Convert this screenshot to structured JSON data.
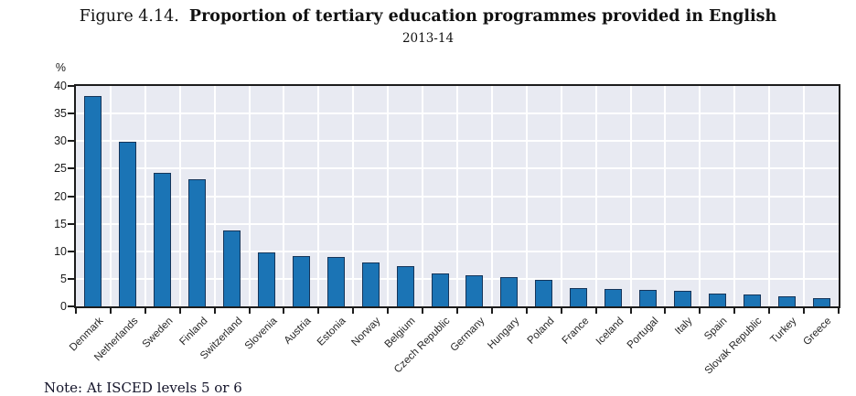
{
  "title": {
    "prefix": "Figure 4.14.",
    "text": "Proportion of tertiary education programmes provided in English"
  },
  "subtitle": "2013-14",
  "note": "Note:  At ISCED levels 5 or 6",
  "chart_data": {
    "type": "bar",
    "title": "Figure 4.14. Proportion of tertiary education programmes provided in English",
    "subtitle": "2013-14",
    "unit_label": "%",
    "xlabel": "",
    "ylabel": "%",
    "ylim": [
      0,
      40
    ],
    "ytick_step": 5,
    "ytick_labels": [
      "0",
      "5",
      "10",
      "15",
      "20",
      "25",
      "30",
      "35",
      "40"
    ],
    "grid": true,
    "legend": "none",
    "categories": [
      "Denmark",
      "Netherlands",
      "Sweden",
      "Finland",
      "Switzerland",
      "Slovenia",
      "Austria",
      "Estonia",
      "Norway",
      "Belgium",
      "Czech Republic",
      "Germany",
      "Hungary",
      "Poland",
      "France",
      "Iceland",
      "Portugal",
      "Italy",
      "Spain",
      "Slovak Republic",
      "Turkey",
      "Greece"
    ],
    "values": [
      38.1,
      29.9,
      24.2,
      23.1,
      13.8,
      9.8,
      9.2,
      8.9,
      8.0,
      7.3,
      6.0,
      5.6,
      5.3,
      4.8,
      3.3,
      3.2,
      3.0,
      2.8,
      2.3,
      2.2,
      1.9,
      1.5
    ],
    "colors": {
      "bar_fill": "#1b74b5",
      "bar_border": "#15355a",
      "plot_background": "#e8eaf2",
      "gridline": "#ffffff",
      "axis": "#1c1c1c",
      "page_background": "#ffffff"
    }
  }
}
